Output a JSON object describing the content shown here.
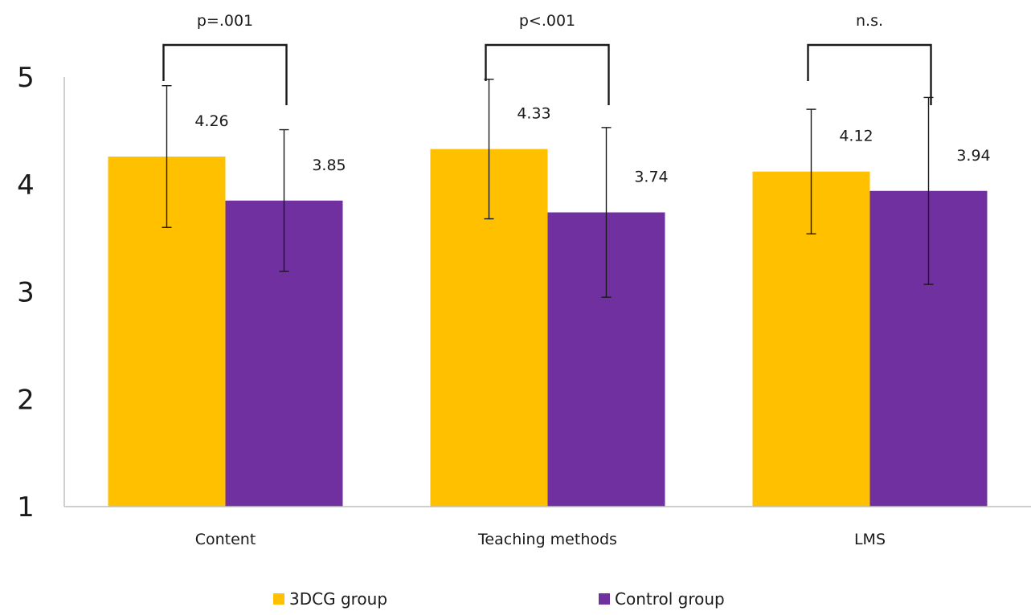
{
  "chart_data": {
    "type": "bar",
    "categories": [
      "Content",
      "Teaching methods",
      "LMS"
    ],
    "series": [
      {
        "name": "3DCG group",
        "color": "#FFC000",
        "values": [
          4.26,
          4.33,
          4.12
        ],
        "error": [
          0.66,
          0.65,
          0.58
        ],
        "labels": [
          "4.26",
          "4.33",
          "4.12"
        ]
      },
      {
        "name": "Control group",
        "color": "#7030A0",
        "values": [
          3.85,
          3.74,
          3.94
        ],
        "error": [
          0.66,
          0.79,
          0.87
        ],
        "labels": [
          "3.85",
          "3.74",
          "3.94"
        ]
      }
    ],
    "significance": [
      "p=.001",
      "p<.001",
      "n.s."
    ],
    "ylim": [
      1,
      5
    ],
    "yticks": [
      "1",
      "2",
      "3",
      "4",
      "5"
    ],
    "title": "",
    "xlabel": "",
    "ylabel": "",
    "grid": false,
    "legend_position": "bottom"
  }
}
